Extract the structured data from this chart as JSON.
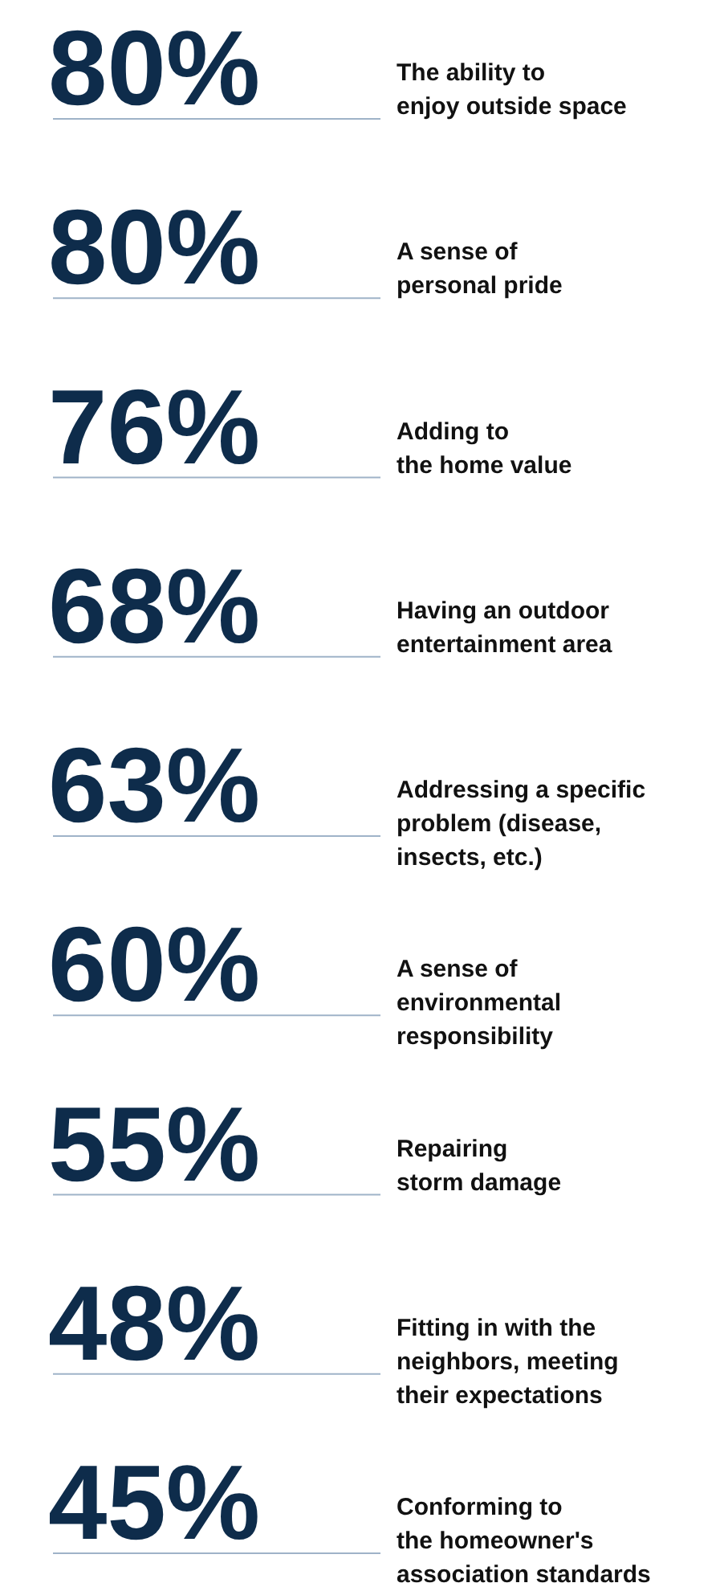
{
  "chart_data": {
    "type": "other",
    "categories": [
      "The ability to\nenjoy outside space",
      "A sense of\npersonal pride",
      "Adding to\nthe home value",
      "Having an outdoor\nentertainment area",
      "Addressing a specific\nproblem (disease,\ninsects, etc.)",
      "A sense of\nenvironmental\nresponsibility",
      "Repairing\nstorm damage",
      "Fitting in with the\nneighbors, meeting\ntheir expectations",
      "Conforming to\nthe homeowner's\nassociation standards"
    ],
    "values": [
      80,
      80,
      76,
      68,
      63,
      60,
      55,
      48,
      45
    ],
    "value_labels": [
      "80%",
      "80%",
      "76%",
      "68%",
      "63%",
      "60%",
      "55%",
      "48%",
      "45%"
    ],
    "color": "#0e2c4b"
  }
}
